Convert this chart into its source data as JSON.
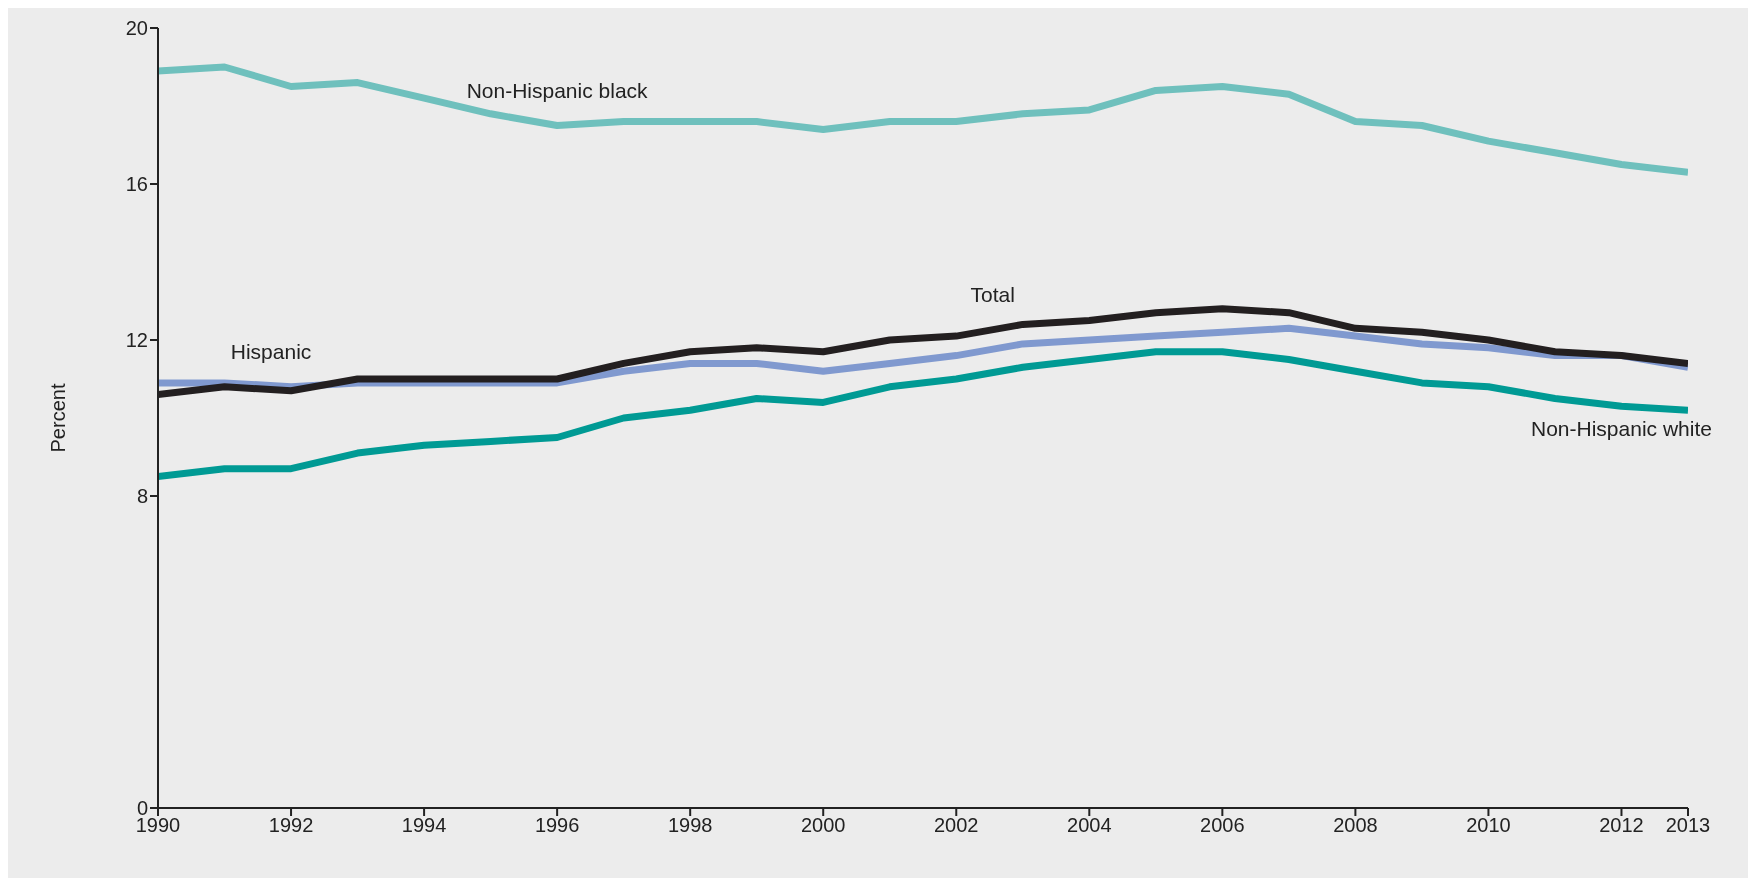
{
  "chart_data": {
    "type": "line",
    "ylabel": "Percent",
    "x": [
      1990,
      1991,
      1992,
      1993,
      1994,
      1995,
      1996,
      1997,
      1998,
      1999,
      2000,
      2001,
      2002,
      2003,
      2004,
      2005,
      2006,
      2007,
      2008,
      2009,
      2010,
      2011,
      2012,
      2013
    ],
    "xlim": [
      1990,
      2013
    ],
    "xticks": [
      1990,
      1992,
      1994,
      1996,
      1998,
      2000,
      2002,
      2004,
      2006,
      2008,
      2010,
      2012,
      2013
    ],
    "ylim": [
      0,
      20
    ],
    "yticks": [
      0,
      8,
      12,
      16,
      20
    ],
    "grid": false,
    "legend": false,
    "marker": "none",
    "line_style": "solid",
    "series": [
      {
        "name": "Non-Hispanic black",
        "color": "#6fc0bd",
        "values": [
          18.9,
          19.0,
          18.5,
          18.6,
          18.2,
          17.8,
          17.5,
          17.6,
          17.6,
          17.6,
          17.4,
          17.6,
          17.6,
          17.8,
          17.9,
          18.4,
          18.5,
          18.3,
          17.6,
          17.5,
          17.1,
          16.8,
          16.5,
          16.3
        ]
      },
      {
        "name": "Hispanic",
        "color": "#8099cf",
        "values": [
          10.9,
          10.9,
          10.8,
          10.9,
          10.9,
          10.9,
          10.9,
          11.2,
          11.4,
          11.4,
          11.2,
          11.4,
          11.6,
          11.9,
          12.0,
          12.1,
          12.2,
          12.3,
          12.1,
          11.9,
          11.8,
          11.6,
          11.6,
          11.3
        ]
      },
      {
        "name": "Total",
        "color": "#231f20",
        "values": [
          10.6,
          10.8,
          10.7,
          11.0,
          11.0,
          11.0,
          11.0,
          11.4,
          11.7,
          11.8,
          11.7,
          12.0,
          12.1,
          12.4,
          12.5,
          12.7,
          12.8,
          12.7,
          12.3,
          12.2,
          12.0,
          11.7,
          11.6,
          11.4
        ]
      },
      {
        "name": "Non-Hispanic white",
        "color": "#009a94",
        "values": [
          8.5,
          8.7,
          8.7,
          9.1,
          9.3,
          9.4,
          9.5,
          10.0,
          10.2,
          10.5,
          10.4,
          10.8,
          11.0,
          11.3,
          11.5,
          11.7,
          11.7,
          11.5,
          11.2,
          10.9,
          10.8,
          10.5,
          10.3,
          10.2
        ]
      }
    ]
  }
}
